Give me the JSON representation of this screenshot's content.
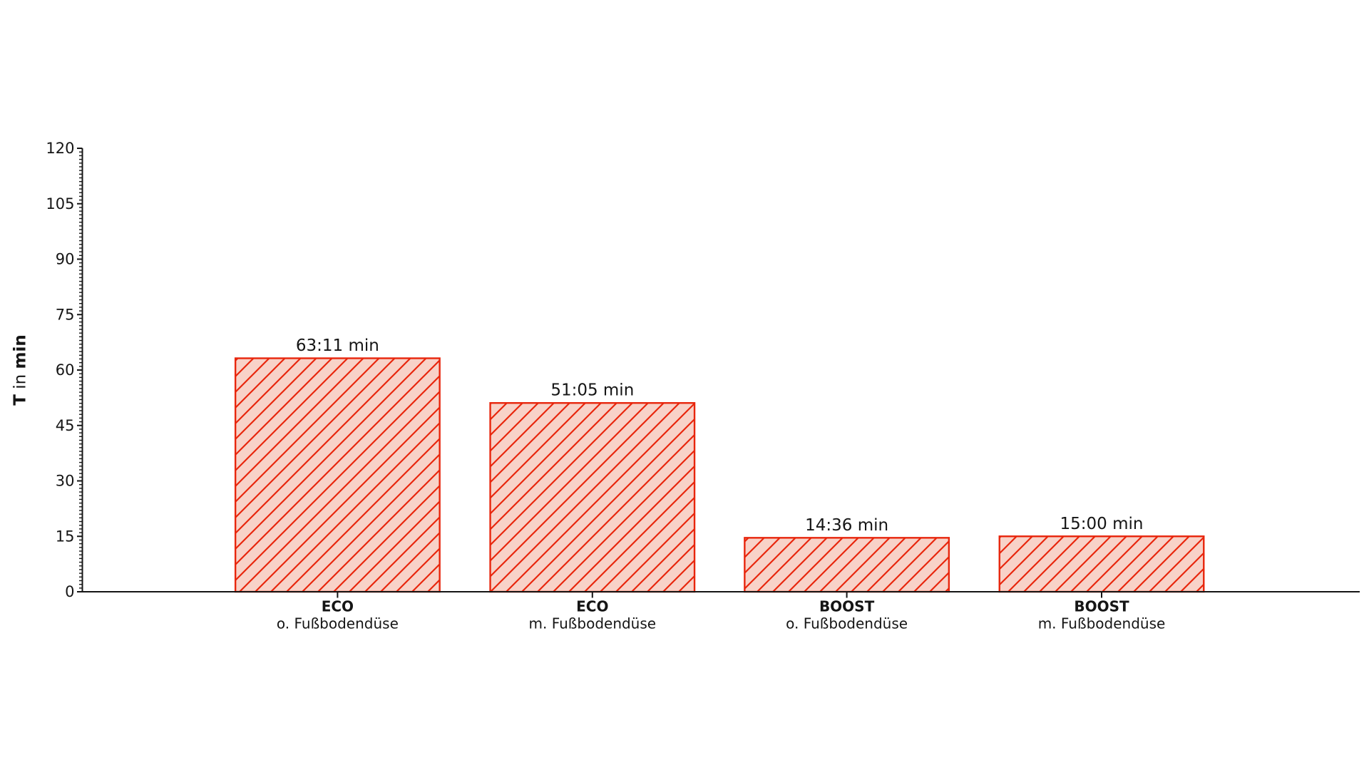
{
  "chart_data": {
    "type": "bar",
    "title": "",
    "ylabel": "T in min",
    "ylabel_parts": [
      {
        "text": "T",
        "bold": true
      },
      {
        "text": " in ",
        "bold": false
      },
      {
        "text": "min",
        "bold": true
      }
    ],
    "xlabel": "",
    "ylim": [
      0,
      120
    ],
    "yticks": [
      0,
      15,
      30,
      45,
      60,
      75,
      90,
      105,
      120
    ],
    "ytick_labels": [
      "0",
      "15",
      "30",
      "45",
      "60",
      "75",
      "90",
      "105",
      "120"
    ],
    "minor_tick_interval": 1,
    "grid": false,
    "legend_position": "none",
    "categories": [
      {
        "mode": "ECO",
        "nozzle": "o. Fußbodendüse"
      },
      {
        "mode": "ECO",
        "nozzle": "m. Fußbodendüse"
      },
      {
        "mode": "BOOST",
        "nozzle": "o. Fußbodendüse"
      },
      {
        "mode": "BOOST",
        "nozzle": "m. Fußbodendüse"
      }
    ],
    "values": [
      63.1833,
      51.0833,
      14.6,
      15.0
    ],
    "value_labels": [
      "63:11 min",
      "51:05 min",
      "14:36 min",
      "15:00 min"
    ],
    "bar_fill_color": "#f8d2c8",
    "bar_edge_color": "#e8260d",
    "hatch_pattern": "/",
    "axis_color": "#151515",
    "text_color": "#151515",
    "background_color": "#ffffff"
  }
}
